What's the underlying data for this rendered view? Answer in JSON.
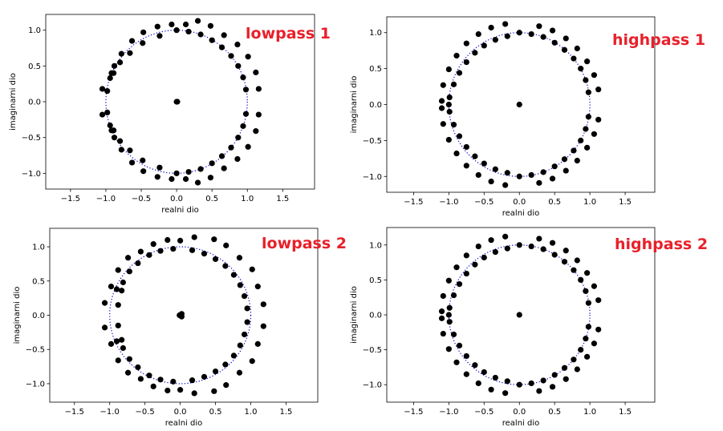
{
  "chart_data": [
    {
      "type": "scatter",
      "title": "lowpass 1",
      "xlabel": "realni dio",
      "ylabel": "imaginarni dio",
      "xlim": [
        -1.85,
        1.95
      ],
      "ylim": [
        -1.22,
        1.22
      ],
      "xticks": [
        -1.5,
        -1.0,
        -0.5,
        0.0,
        0.5,
        1.0,
        1.5
      ],
      "yticks": [
        -1.0,
        -0.5,
        0.0,
        0.5,
        1.0
      ],
      "unit_circle": {
        "style": "dotted",
        "color": "#0000cc",
        "radius": 1.0
      },
      "points": [
        [
          0.0,
          0.0
        ],
        [
          0.01,
          0.0
        ],
        [
          0.3,
          1.13
        ],
        [
          0.13,
          1.08
        ],
        [
          -0.07,
          1.08
        ],
        [
          -0.27,
          1.05
        ],
        [
          -0.47,
          0.97
        ],
        [
          -0.63,
          0.85
        ],
        [
          -0.78,
          0.67
        ],
        [
          -0.88,
          0.5
        ],
        [
          -0.94,
          0.33
        ],
        [
          -1.05,
          0.18
        ],
        [
          -0.98,
          0.15
        ],
        [
          -0.92,
          0.4
        ],
        [
          0.3,
          -1.13
        ],
        [
          0.13,
          -1.08
        ],
        [
          -0.07,
          -1.08
        ],
        [
          -0.27,
          -1.05
        ],
        [
          -0.47,
          -0.97
        ],
        [
          -0.63,
          -0.85
        ],
        [
          -0.78,
          -0.67
        ],
        [
          -0.88,
          -0.5
        ],
        [
          -0.94,
          -0.33
        ],
        [
          -1.05,
          -0.18
        ],
        [
          -0.98,
          -0.15
        ],
        [
          -0.92,
          -0.4
        ],
        [
          0.0,
          1.0
        ],
        [
          0.17,
          0.98
        ],
        [
          0.34,
          0.94
        ],
        [
          0.5,
          0.86
        ],
        [
          0.64,
          0.76
        ],
        [
          0.77,
          0.64
        ],
        [
          0.87,
          0.5
        ],
        [
          0.94,
          0.34
        ],
        [
          0.98,
          0.17
        ],
        [
          0.0,
          -1.0
        ],
        [
          0.17,
          -0.98
        ],
        [
          0.34,
          -0.94
        ],
        [
          0.5,
          -0.86
        ],
        [
          0.64,
          -0.76
        ],
        [
          0.77,
          -0.64
        ],
        [
          0.87,
          -0.5
        ],
        [
          0.94,
          -0.34
        ],
        [
          0.98,
          -0.17
        ],
        [
          -0.24,
          0.92
        ],
        [
          -0.48,
          0.82
        ],
        [
          -0.66,
          0.68
        ],
        [
          -0.8,
          0.55
        ],
        [
          -0.89,
          0.4
        ],
        [
          -0.24,
          -0.92
        ],
        [
          -0.48,
          -0.82
        ],
        [
          -0.66,
          -0.68
        ],
        [
          -0.8,
          -0.55
        ],
        [
          -0.89,
          -0.4
        ],
        [
          0.48,
          1.06
        ],
        [
          0.67,
          0.93
        ],
        [
          0.86,
          0.8
        ],
        [
          1.01,
          0.63
        ],
        [
          1.12,
          0.41
        ],
        [
          1.16,
          0.18
        ],
        [
          0.48,
          -1.06
        ],
        [
          0.67,
          -0.93
        ],
        [
          0.86,
          -0.8
        ],
        [
          1.01,
          -0.63
        ],
        [
          1.12,
          -0.41
        ],
        [
          1.16,
          -0.18
        ]
      ]
    },
    {
      "type": "scatter",
      "title": "highpass 1",
      "xlabel": "realni dio",
      "ylabel": "imaginarni dio",
      "xlim": [
        -1.88,
        1.92
      ],
      "ylim": [
        -1.22,
        1.22
      ],
      "xticks": [
        -1.5,
        -1.0,
        -0.5,
        0.0,
        0.5,
        1.0,
        1.5
      ],
      "yticks": [
        -1.0,
        -0.5,
        0.0,
        0.5,
        1.0
      ],
      "unit_circle": {
        "style": "dotted",
        "color": "#0000cc",
        "radius": 1.0
      },
      "points": [
        [
          0.0,
          0.0
        ],
        [
          -0.2,
          1.12
        ],
        [
          -0.4,
          1.07
        ],
        [
          -0.58,
          0.98
        ],
        [
          -0.75,
          0.85
        ],
        [
          -0.89,
          0.68
        ],
        [
          -1.0,
          0.49
        ],
        [
          -1.08,
          0.27
        ],
        [
          -1.1,
          0.05
        ],
        [
          -1.0,
          0.0
        ],
        [
          -0.2,
          -1.12
        ],
        [
          -0.4,
          -1.07
        ],
        [
          -0.58,
          -0.98
        ],
        [
          -0.75,
          -0.85
        ],
        [
          -0.89,
          -0.68
        ],
        [
          -1.0,
          -0.49
        ],
        [
          -1.08,
          -0.27
        ],
        [
          -1.1,
          -0.05
        ],
        [
          0.0,
          1.0
        ],
        [
          0.17,
          0.98
        ],
        [
          0.34,
          0.94
        ],
        [
          0.5,
          0.86
        ],
        [
          0.64,
          0.76
        ],
        [
          0.77,
          0.64
        ],
        [
          0.87,
          0.5
        ],
        [
          0.94,
          0.34
        ],
        [
          0.98,
          0.17
        ],
        [
          0.0,
          -1.0
        ],
        [
          0.17,
          -0.98
        ],
        [
          0.34,
          -0.94
        ],
        [
          0.5,
          -0.86
        ],
        [
          0.64,
          -0.76
        ],
        [
          0.77,
          -0.64
        ],
        [
          0.87,
          -0.5
        ],
        [
          0.94,
          -0.34
        ],
        [
          0.98,
          -0.17
        ],
        [
          -0.17,
          0.95
        ],
        [
          -0.34,
          0.9
        ],
        [
          -0.5,
          0.82
        ],
        [
          -0.63,
          0.72
        ],
        [
          -0.75,
          0.59
        ],
        [
          -0.85,
          0.44
        ],
        [
          -0.93,
          0.28
        ],
        [
          -0.99,
          0.1
        ],
        [
          -0.17,
          -0.95
        ],
        [
          -0.34,
          -0.9
        ],
        [
          -0.5,
          -0.82
        ],
        [
          -0.63,
          -0.72
        ],
        [
          -0.75,
          -0.59
        ],
        [
          -0.85,
          -0.44
        ],
        [
          -0.93,
          -0.28
        ],
        [
          -0.99,
          -0.1
        ],
        [
          0.28,
          1.09
        ],
        [
          0.47,
          1.03
        ],
        [
          0.66,
          0.92
        ],
        [
          0.82,
          0.78
        ],
        [
          0.96,
          0.6
        ],
        [
          1.06,
          0.41
        ],
        [
          1.12,
          0.21
        ],
        [
          0.28,
          -1.09
        ],
        [
          0.47,
          -1.03
        ],
        [
          0.66,
          -0.92
        ],
        [
          0.82,
          -0.78
        ],
        [
          0.96,
          -0.6
        ],
        [
          1.06,
          -0.41
        ],
        [
          1.12,
          -0.21
        ]
      ]
    },
    {
      "type": "scatter",
      "title": "lowpass 2",
      "xlabel": "realni dio",
      "ylabel": "imaginarni dio",
      "xlim": [
        -1.85,
        1.95
      ],
      "ylim": [
        -1.27,
        1.27
      ],
      "xticks": [
        -1.5,
        -1.0,
        -0.5,
        0.0,
        0.5,
        1.0,
        1.5
      ],
      "yticks": [
        -1.0,
        -0.5,
        0.0,
        0.5,
        1.0
      ],
      "unit_circle": {
        "style": "dotted",
        "color": "#0000cc",
        "radius": 1.0
      },
      "points": [
        [
          -0.01,
          0.0
        ],
        [
          0.02,
          0.02
        ],
        [
          0.02,
          -0.02
        ],
        [
          0.2,
          1.14
        ],
        [
          0.0,
          1.09
        ],
        [
          -0.18,
          1.1
        ],
        [
          -0.38,
          1.04
        ],
        [
          -0.56,
          0.93
        ],
        [
          -0.74,
          0.84
        ],
        [
          -0.88,
          0.66
        ],
        [
          -0.98,
          0.42
        ],
        [
          -1.07,
          0.18
        ],
        [
          -0.9,
          0.38
        ],
        [
          -0.83,
          0.36
        ],
        [
          0.2,
          -1.14
        ],
        [
          0.0,
          -1.09
        ],
        [
          -0.18,
          -1.1
        ],
        [
          -0.38,
          -1.04
        ],
        [
          -0.56,
          -0.93
        ],
        [
          -0.74,
          -0.84
        ],
        [
          -0.88,
          -0.66
        ],
        [
          -0.98,
          -0.42
        ],
        [
          -1.07,
          -0.18
        ],
        [
          -0.9,
          -0.38
        ],
        [
          -0.83,
          -0.36
        ],
        [
          -0.1,
          0.97
        ],
        [
          -0.28,
          0.94
        ],
        [
          -0.44,
          0.88
        ],
        [
          -0.6,
          0.76
        ],
        [
          -0.72,
          0.64
        ],
        [
          -0.81,
          0.48
        ],
        [
          -0.88,
          0.15
        ],
        [
          -0.88,
          -0.15
        ],
        [
          -0.1,
          -0.97
        ],
        [
          -0.28,
          -0.94
        ],
        [
          -0.44,
          -0.88
        ],
        [
          -0.6,
          -0.76
        ],
        [
          -0.72,
          -0.64
        ],
        [
          -0.81,
          -0.48
        ],
        [
          0.17,
          0.95
        ],
        [
          0.34,
          0.9
        ],
        [
          0.5,
          0.82
        ],
        [
          0.64,
          0.72
        ],
        [
          0.76,
          0.59
        ],
        [
          0.85,
          0.44
        ],
        [
          0.91,
          0.28
        ],
        [
          0.95,
          0.1
        ],
        [
          0.17,
          -0.95
        ],
        [
          0.34,
          -0.9
        ],
        [
          0.5,
          -0.82
        ],
        [
          0.64,
          -0.72
        ],
        [
          0.76,
          -0.59
        ],
        [
          0.85,
          -0.44
        ],
        [
          0.91,
          -0.28
        ],
        [
          0.95,
          -0.1
        ],
        [
          0.48,
          1.11
        ],
        [
          0.65,
          1.02
        ],
        [
          0.84,
          0.84
        ],
        [
          1.02,
          0.67
        ],
        [
          1.1,
          0.42
        ],
        [
          1.18,
          0.16
        ],
        [
          0.48,
          -1.11
        ],
        [
          0.65,
          -1.02
        ],
        [
          0.84,
          -0.84
        ],
        [
          1.02,
          -0.67
        ],
        [
          1.1,
          -0.42
        ],
        [
          1.18,
          -0.16
        ]
      ]
    },
    {
      "type": "scatter",
      "title": "highpass 2",
      "xlabel": "realni dio",
      "ylabel": "imaginarni dio",
      "xlim": [
        -1.88,
        1.92
      ],
      "ylim": [
        -1.25,
        1.25
      ],
      "xticks": [
        -1.5,
        -1.0,
        -0.5,
        0.0,
        0.5,
        1.0,
        1.5
      ],
      "yticks": [
        -1.0,
        -0.5,
        0.0,
        0.5,
        1.0
      ],
      "unit_circle": {
        "style": "dotted",
        "color": "#0000cc",
        "radius": 1.0
      },
      "points": [
        [
          0.0,
          0.0
        ],
        [
          -0.2,
          1.12
        ],
        [
          -0.4,
          1.07
        ],
        [
          -0.58,
          0.98
        ],
        [
          -0.75,
          0.85
        ],
        [
          -0.89,
          0.68
        ],
        [
          -1.0,
          0.49
        ],
        [
          -1.08,
          0.27
        ],
        [
          -1.1,
          0.05
        ],
        [
          -1.0,
          0.0
        ],
        [
          -0.2,
          -1.12
        ],
        [
          -0.4,
          -1.07
        ],
        [
          -0.58,
          -0.98
        ],
        [
          -0.75,
          -0.85
        ],
        [
          -0.89,
          -0.68
        ],
        [
          -1.0,
          -0.49
        ],
        [
          -1.08,
          -0.27
        ],
        [
          -1.1,
          -0.05
        ],
        [
          0.0,
          1.0
        ],
        [
          0.17,
          0.98
        ],
        [
          0.34,
          0.94
        ],
        [
          0.5,
          0.86
        ],
        [
          0.64,
          0.76
        ],
        [
          0.77,
          0.64
        ],
        [
          0.87,
          0.5
        ],
        [
          0.94,
          0.34
        ],
        [
          0.98,
          0.17
        ],
        [
          0.0,
          -1.0
        ],
        [
          0.17,
          -0.98
        ],
        [
          0.34,
          -0.94
        ],
        [
          0.5,
          -0.86
        ],
        [
          0.64,
          -0.76
        ],
        [
          0.77,
          -0.64
        ],
        [
          0.87,
          -0.5
        ],
        [
          0.94,
          -0.34
        ],
        [
          0.98,
          -0.17
        ],
        [
          -0.17,
          0.95
        ],
        [
          -0.34,
          0.9
        ],
        [
          -0.5,
          0.82
        ],
        [
          -0.63,
          0.72
        ],
        [
          -0.75,
          0.59
        ],
        [
          -0.85,
          0.44
        ],
        [
          -0.93,
          0.28
        ],
        [
          -0.99,
          0.1
        ],
        [
          -0.17,
          -0.95
        ],
        [
          -0.34,
          -0.9
        ],
        [
          -0.5,
          -0.82
        ],
        [
          -0.63,
          -0.72
        ],
        [
          -0.75,
          -0.59
        ],
        [
          -0.85,
          -0.44
        ],
        [
          -0.93,
          -0.28
        ],
        [
          -0.99,
          -0.1
        ],
        [
          0.28,
          1.09
        ],
        [
          0.47,
          1.03
        ],
        [
          0.66,
          0.92
        ],
        [
          0.82,
          0.78
        ],
        [
          0.96,
          0.6
        ],
        [
          1.06,
          0.41
        ],
        [
          1.12,
          0.21
        ],
        [
          0.28,
          -1.09
        ],
        [
          0.47,
          -1.03
        ],
        [
          0.66,
          -0.92
        ],
        [
          0.82,
          -0.78
        ],
        [
          0.96,
          -0.6
        ],
        [
          1.06,
          -0.41
        ],
        [
          1.12,
          -0.21
        ]
      ]
    }
  ],
  "colors": {
    "points": "#000000",
    "circle": "#0000cc",
    "title": "#e8202a",
    "axes": "#000000"
  }
}
